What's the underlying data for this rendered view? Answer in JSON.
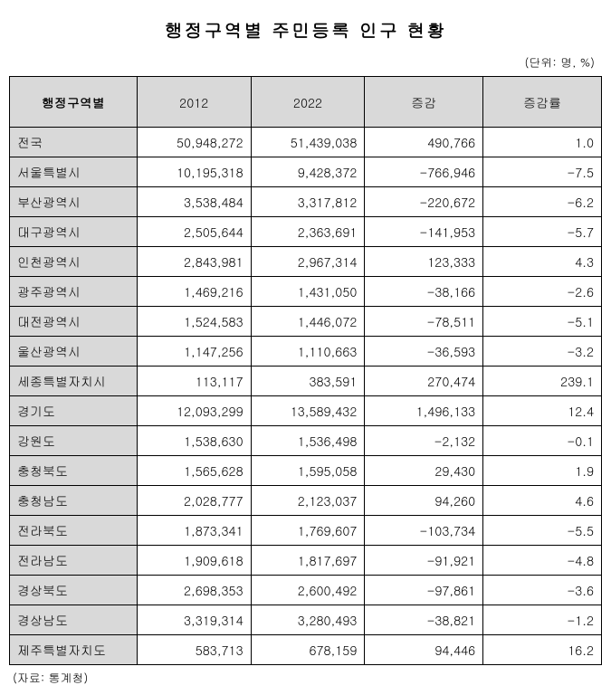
{
  "title": "행정구역별 주민등록 인구 현황",
  "unit_label": "(단위: 명, %)",
  "source_label": "(자료: 통계청)",
  "columns": {
    "region": "행정구역별",
    "year1": "2012",
    "year2": "2022",
    "diff": "증감",
    "rate": "증감률"
  },
  "rows": [
    {
      "region": "전국",
      "y1": "50,948,272",
      "y2": "51,439,038",
      "diff": "490,766",
      "rate": "1.0"
    },
    {
      "region": "서울특별시",
      "y1": "10,195,318",
      "y2": "9,428,372",
      "diff": "-766,946",
      "rate": "-7.5"
    },
    {
      "region": "부산광역시",
      "y1": "3,538,484",
      "y2": "3,317,812",
      "diff": "-220,672",
      "rate": "-6.2"
    },
    {
      "region": "대구광역시",
      "y1": "2,505,644",
      "y2": "2,363,691",
      "diff": "-141,953",
      "rate": "-5.7"
    },
    {
      "region": "인천광역시",
      "y1": "2,843,981",
      "y2": "2,967,314",
      "diff": "123,333",
      "rate": "4.3"
    },
    {
      "region": "광주광역시",
      "y1": "1,469,216",
      "y2": "1,431,050",
      "diff": "-38,166",
      "rate": "-2.6"
    },
    {
      "region": "대전광역시",
      "y1": "1,524,583",
      "y2": "1,446,072",
      "diff": "-78,511",
      "rate": "-5.1"
    },
    {
      "region": "울산광역시",
      "y1": "1,147,256",
      "y2": "1,110,663",
      "diff": "-36,593",
      "rate": "-3.2"
    },
    {
      "region": "세종특별자치시",
      "y1": "113,117",
      "y2": "383,591",
      "diff": "270,474",
      "rate": "239.1"
    },
    {
      "region": "경기도",
      "y1": "12,093,299",
      "y2": "13,589,432",
      "diff": "1,496,133",
      "rate": "12.4"
    },
    {
      "region": "강원도",
      "y1": "1,538,630",
      "y2": "1,536,498",
      "diff": "-2,132",
      "rate": "-0.1"
    },
    {
      "region": "충청북도",
      "y1": "1,565,628",
      "y2": "1,595,058",
      "diff": "29,430",
      "rate": "1.9"
    },
    {
      "region": "충청남도",
      "y1": "2,028,777",
      "y2": "2,123,037",
      "diff": "94,260",
      "rate": "4.6"
    },
    {
      "region": "전라북도",
      "y1": "1,873,341",
      "y2": "1,769,607",
      "diff": "-103,734",
      "rate": "-5.5"
    },
    {
      "region": "전라남도",
      "y1": "1,909,618",
      "y2": "1,817,697",
      "diff": "-91,921",
      "rate": "-4.8"
    },
    {
      "region": "경상북도",
      "y1": "2,698,353",
      "y2": "2,600,492",
      "diff": "-97,861",
      "rate": "-3.6"
    },
    {
      "region": "경상남도",
      "y1": "3,319,314",
      "y2": "3,280,493",
      "diff": "-38,821",
      "rate": "-1.2"
    },
    {
      "region": "제주특별자치도",
      "y1": "583,713",
      "y2": "678,159",
      "diff": "94,446",
      "rate": "16.2"
    }
  ],
  "styling": {
    "header_bg": "#d9d9d9",
    "region_bg": "#d9d9d9",
    "border_color": "#000000",
    "background_color": "#ffffff",
    "title_fontsize": 20,
    "cell_fontsize": 14,
    "font_family": "Malgun Gothic"
  }
}
